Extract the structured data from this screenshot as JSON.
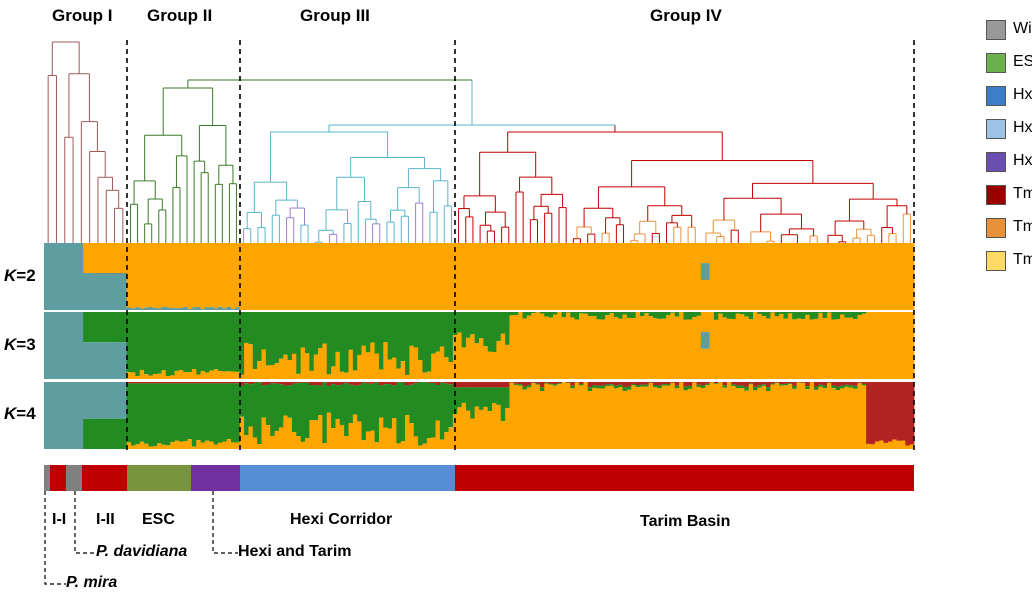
{
  "groups": [
    "Group I",
    "Group II",
    "Group III",
    "Group IV"
  ],
  "k_labels": [
    {
      "k": "K",
      "value": "=2"
    },
    {
      "k": "K",
      "value": "=3"
    },
    {
      "k": "K",
      "value": "=4"
    }
  ],
  "legend": [
    {
      "label": "Wild",
      "color": "#999999"
    },
    {
      "label": "ESC",
      "color": "#6ab04c"
    },
    {
      "label": "HxJq",
      "color": "#3a7fc8"
    },
    {
      "label": "HxZy",
      "color": "#9cc3e6"
    },
    {
      "label": "HxDh",
      "color": "#6a4fb0"
    },
    {
      "label": "TmKsh",
      "color": "#9b0000"
    },
    {
      "label": "TmHt",
      "color": "#e8923a"
    },
    {
      "label": "TmAksu",
      "color": "#ffd966"
    }
  ],
  "cluster_colors": {
    "cluster1": "#5f9ea0",
    "cluster2": "#ffa500",
    "cluster3": "#228b22",
    "cluster4": "#b22222"
  },
  "region_bar": [
    {
      "name": "P. mira",
      "color": "#808080"
    },
    {
      "name": "I-I",
      "color": "#c00000"
    },
    {
      "name": "P. davidiana",
      "color": "#808080"
    },
    {
      "name": "I-II",
      "color": "#c00000"
    },
    {
      "name": "ESC",
      "color": "#77933c"
    },
    {
      "name": "Hexi and Tarim",
      "color": "#7030a0"
    },
    {
      "name": "Hexi Corridor",
      "color": "#558ed5"
    },
    {
      "name": "Tarim Basin",
      "color": "#c00000"
    }
  ],
  "region_labels": {
    "i_i": "I-I",
    "i_ii": "I-II",
    "esc": "ESC",
    "hexi": "Hexi Corridor",
    "tarim": "Tarim Basin",
    "p_davidiana": "P. davidiana",
    "hexi_tarim": "Hexi and Tarim",
    "p_mira": "P. mira"
  }
}
